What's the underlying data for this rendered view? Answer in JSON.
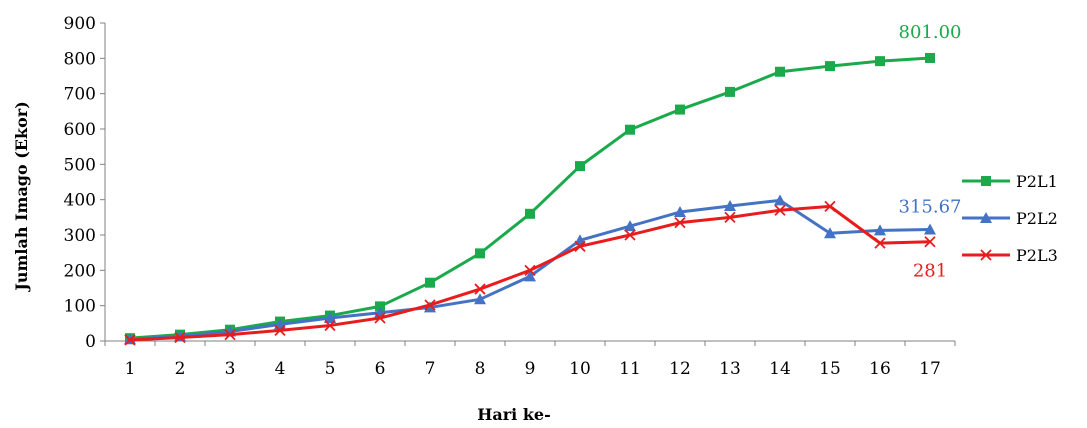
{
  "chart_data": {
    "type": "line",
    "title": "",
    "xlabel": "Hari ke-",
    "ylabel": "Jumlah Imago (Ekor)",
    "x": [
      1,
      2,
      3,
      4,
      5,
      6,
      7,
      8,
      9,
      10,
      11,
      12,
      13,
      14,
      15,
      16,
      17
    ],
    "ylim": [
      0,
      900
    ],
    "yticks": [
      0,
      100,
      200,
      300,
      400,
      500,
      600,
      700,
      800,
      900
    ],
    "grid": false,
    "legend_position": "right",
    "series": [
      {
        "name": "P2L1",
        "color": "#1aaa4b",
        "marker": "square",
        "values": [
          8,
          18,
          32,
          55,
          72,
          98,
          165,
          248,
          360,
          495,
          598,
          655,
          705,
          762,
          778,
          792,
          801
        ]
      },
      {
        "name": "P2L2",
        "color": "#4472c4",
        "marker": "triangle",
        "values": [
          5,
          13,
          27,
          47,
          65,
          80,
          95,
          118,
          183,
          285,
          325,
          365,
          382,
          398,
          305,
          313,
          315.67
        ]
      },
      {
        "name": "P2L3",
        "color": "#e81c1c",
        "marker": "x",
        "values": [
          3,
          10,
          18,
          30,
          44,
          65,
          102,
          147,
          200,
          268,
          300,
          335,
          350,
          370,
          381,
          277,
          281
        ]
      }
    ],
    "annotations": [
      {
        "text": "801.00",
        "series": 0,
        "x": 17,
        "color": "#1aaa4b"
      },
      {
        "text": "315.67",
        "series": 1,
        "x": 17,
        "color": "#4472c4"
      },
      {
        "text": "281",
        "series": 2,
        "x": 17,
        "color": "#e81c1c"
      }
    ]
  }
}
